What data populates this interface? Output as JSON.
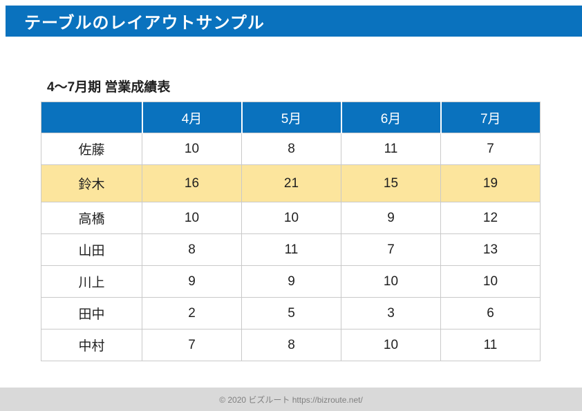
{
  "header": {
    "title": "テーブルのレイアウトサンプル",
    "bar_color": "#0a72be",
    "text_color": "#ffffff"
  },
  "table": {
    "title": "4～7月期 営業成績表",
    "columns": [
      "",
      "4月",
      "5月",
      "6月",
      "7月"
    ],
    "rows": [
      {
        "name": "佐藤",
        "values": [
          10,
          8,
          11,
          7
        ],
        "highlighted": false
      },
      {
        "name": "鈴木",
        "values": [
          16,
          21,
          15,
          19
        ],
        "highlighted": true
      },
      {
        "name": "高橋",
        "values": [
          10,
          10,
          9,
          12
        ],
        "highlighted": false
      },
      {
        "name": "山田",
        "values": [
          8,
          11,
          7,
          13
        ],
        "highlighted": false
      },
      {
        "name": "川上",
        "values": [
          9,
          9,
          10,
          10
        ],
        "highlighted": false
      },
      {
        "name": "田中",
        "values": [
          2,
          5,
          3,
          6
        ],
        "highlighted": false
      },
      {
        "name": "中村",
        "values": [
          7,
          8,
          10,
          11
        ],
        "highlighted": false
      }
    ],
    "header_color": "#0a72be",
    "highlight_color": "#fce59d"
  },
  "footer": {
    "text": "© 2020 ビズルート https://bizroute.net/",
    "band_color": "#d9d9d9"
  },
  "chart_data": {
    "type": "table",
    "title": "4～7月期 営業成績表",
    "columns": [
      "4月",
      "5月",
      "6月",
      "7月"
    ],
    "rows": [
      {
        "label": "佐藤",
        "values": [
          10,
          8,
          11,
          7
        ]
      },
      {
        "label": "鈴木",
        "values": [
          16,
          21,
          15,
          19
        ]
      },
      {
        "label": "高橋",
        "values": [
          10,
          10,
          9,
          12
        ]
      },
      {
        "label": "山田",
        "values": [
          8,
          11,
          7,
          13
        ]
      },
      {
        "label": "川上",
        "values": [
          9,
          9,
          10,
          10
        ]
      },
      {
        "label": "田中",
        "values": [
          2,
          5,
          3,
          6
        ]
      },
      {
        "label": "中村",
        "values": [
          7,
          8,
          10,
          11
        ]
      }
    ],
    "highlighted_row": "鈴木"
  }
}
